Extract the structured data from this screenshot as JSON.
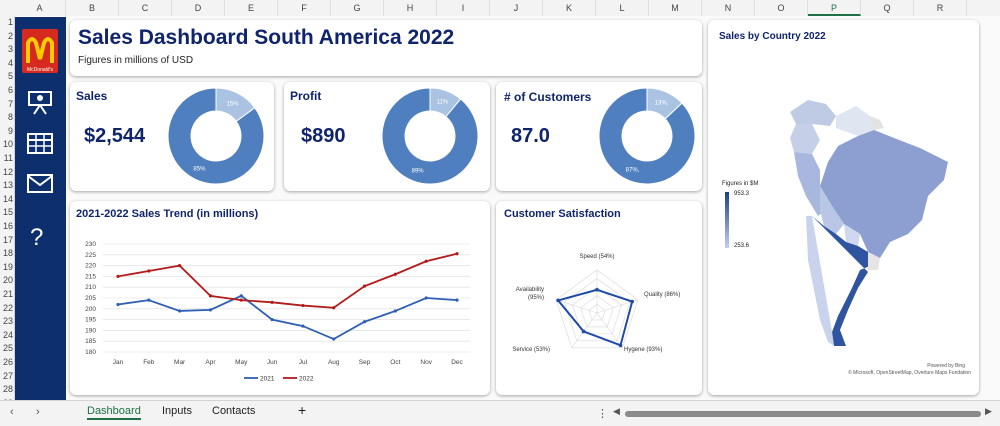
{
  "columns": [
    "A",
    "B",
    "C",
    "D",
    "E",
    "F",
    "G",
    "H",
    "I",
    "J",
    "K",
    "L",
    "M",
    "N",
    "O",
    "P",
    "Q",
    "R"
  ],
  "selected_column": "P",
  "rows": [
    "1",
    "2",
    "3",
    "4",
    "5",
    "6",
    "7",
    "8",
    "9",
    "10",
    "11",
    "12",
    "13",
    "14",
    "15",
    "16",
    "17",
    "18",
    "19",
    "20",
    "21",
    "22",
    "23",
    "24",
    "25",
    "26",
    "27",
    "28",
    "29"
  ],
  "logo_text": "McDonald's",
  "header": {
    "title": "Sales Dashboard South America 2022",
    "subtitle": "Figures in millions of USD"
  },
  "kpis": [
    {
      "label": "Sales",
      "value": "$2,544",
      "pct_major": "85%",
      "pct_minor": "15%",
      "major": 0.85
    },
    {
      "label": "Profit",
      "value": "$890",
      "pct_major": "89%",
      "pct_minor": "11%",
      "major": 0.89
    },
    {
      "label": "# of Customers",
      "value": "87.0",
      "pct_major": "87%,",
      "pct_minor": "13%,",
      "major": 0.87
    }
  ],
  "colors": {
    "navy": "#0d2f6e",
    "donut_major": "#4f7fbf",
    "donut_minor": "#aac3e3",
    "line2021": "#2f5fb5",
    "line2022": "#b31b1b"
  },
  "sidebar_icons": [
    "presentation-icon",
    "table-icon",
    "mail-icon",
    "help-icon"
  ],
  "help_glyph": "?",
  "chart_data": [
    {
      "type": "line",
      "title": "2021-2022 Sales Trend (in millions)",
      "categories": [
        "Jan",
        "Feb",
        "Mar",
        "Apr",
        "May",
        "Jun",
        "Jul",
        "Aug",
        "Sep",
        "Oct",
        "Nov",
        "Dec"
      ],
      "yticks": [
        "180",
        "185",
        "190",
        "195",
        "200",
        "205",
        "210",
        "215",
        "220",
        "225",
        "230"
      ],
      "ylim": [
        180,
        230
      ],
      "series": [
        {
          "name": "2021",
          "values": [
            202,
            204,
            199,
            199.5,
            206,
            195,
            192,
            186,
            194,
            199,
            205,
            204
          ]
        },
        {
          "name": "2022",
          "values": [
            215,
            217.5,
            220,
            206,
            204,
            203,
            201.5,
            200.5,
            210.5,
            216,
            222,
            225.5
          ]
        }
      ],
      "legend": "bottom"
    },
    {
      "type": "radar",
      "title": "Customer Satisfaction",
      "axes": [
        "Speed (54%)",
        "Quality (86%)",
        "Hygene (93%)",
        "Service (53%)",
        "Availability (95%)"
      ],
      "values": [
        0.54,
        0.86,
        0.93,
        0.53,
        0.95
      ]
    }
  ],
  "map": {
    "title": "Sales by Country 2022",
    "legend_title": "Figures in $M",
    "max_label": "953.3",
    "min_label": "253.6",
    "credit1": "Powered by Bing",
    "credit2": "© Microsoft, OpenStreetMap, Overture Maps Fundation"
  },
  "tabs": [
    "Dashboard",
    "Inputs",
    "Contacts"
  ],
  "active_tab": "Dashboard",
  "add_sheet": "+",
  "more_glyph": "⋮"
}
